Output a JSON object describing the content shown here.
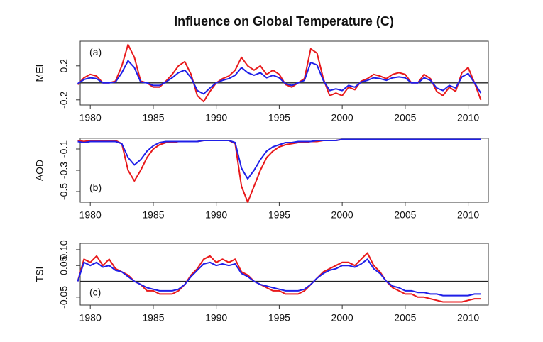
{
  "title": "Influence on Global Temperature (C)",
  "chart_data": [
    {
      "type": "line",
      "ylabel": "MEI",
      "annotation": "(a)",
      "x": [
        1979,
        1979.5,
        1980,
        1980.5,
        1981,
        1981.5,
        1982,
        1982.5,
        1983,
        1983.5,
        1984,
        1984.5,
        1985,
        1985.5,
        1986,
        1986.5,
        1987,
        1987.5,
        1988,
        1988.5,
        1989,
        1989.5,
        1990,
        1990.5,
        1991,
        1991.5,
        1992,
        1992.5,
        1993,
        1993.5,
        1994,
        1994.5,
        1995,
        1995.5,
        1996,
        1996.5,
        1997,
        1997.5,
        1998,
        1998.5,
        1999,
        1999.5,
        2000,
        2000.5,
        2001,
        2001.5,
        2002,
        2002.5,
        2003,
        2003.5,
        2004,
        2004.5,
        2005,
        2005.5,
        2006,
        2006.5,
        2007,
        2007.5,
        2008,
        2008.5,
        2009,
        2009.5,
        2010,
        2010.5,
        2011
      ],
      "series": [
        {
          "color": "#e8191b",
          "values": [
            -0.02,
            0.06,
            0.1,
            0.08,
            0,
            0,
            0.02,
            0.2,
            0.45,
            0.3,
            0.02,
            0,
            -0.05,
            -0.05,
            0.02,
            0.1,
            0.2,
            0.25,
            0.1,
            -0.15,
            -0.22,
            -0.1,
            0,
            0.05,
            0.08,
            0.15,
            0.3,
            0.2,
            0.15,
            0.2,
            0.1,
            0.15,
            0.1,
            -0.02,
            -0.05,
            0,
            0.05,
            0.4,
            0.35,
            0.05,
            -0.15,
            -0.12,
            -0.15,
            -0.05,
            -0.08,
            0.02,
            0.05,
            0.1,
            0.08,
            0.05,
            0.1,
            0.12,
            0.1,
            0,
            0,
            0.1,
            0.05,
            -0.1,
            -0.15,
            -0.05,
            -0.1,
            0.12,
            0.18,
            0,
            -0.2
          ]
        },
        {
          "color": "#1f1fe8",
          "values": [
            -0.01,
            0.04,
            0.06,
            0.05,
            0,
            0,
            0.01,
            0.12,
            0.26,
            0.18,
            0.01,
            0,
            -0.03,
            -0.03,
            0.01,
            0.06,
            0.12,
            0.15,
            0.06,
            -0.09,
            -0.13,
            -0.06,
            0,
            0.03,
            0.05,
            0.09,
            0.18,
            0.12,
            0.09,
            0.12,
            0.06,
            0.09,
            0.06,
            -0.01,
            -0.03,
            0,
            0.03,
            0.24,
            0.21,
            0.03,
            -0.09,
            -0.07,
            -0.09,
            -0.03,
            -0.05,
            0.01,
            0.03,
            0.06,
            0.05,
            0.03,
            0.06,
            0.07,
            0.06,
            0,
            0,
            0.06,
            0.03,
            -0.06,
            -0.09,
            -0.03,
            -0.06,
            0.07,
            0.11,
            0,
            -0.12
          ]
        }
      ],
      "xlim": [
        1979.2,
        2011.6
      ],
      "xticks": [
        1980,
        1985,
        1990,
        1995,
        2000,
        2005,
        2010
      ],
      "ylim": [
        -0.26,
        0.49
      ],
      "yticks": [
        -0.2,
        0.2
      ],
      "hline": 0,
      "hline_color": "#222"
    },
    {
      "type": "line",
      "ylabel": "AOD",
      "annotation": "(b)",
      "x": [
        1979,
        1979.5,
        1980,
        1980.5,
        1981,
        1981.5,
        1982,
        1982.5,
        1983,
        1983.5,
        1984,
        1984.5,
        1985,
        1985.5,
        1986,
        1986.5,
        1987,
        1987.5,
        1988,
        1988.5,
        1989,
        1989.5,
        1990,
        1990.5,
        1991,
        1991.5,
        1992,
        1992.5,
        1993,
        1993.5,
        1994,
        1994.5,
        1995,
        1995.5,
        1996,
        1996.5,
        1997,
        1997.5,
        1998,
        1998.5,
        1999,
        1999.5,
        2000,
        2000.5,
        2001,
        2001.5,
        2002,
        2002.5,
        2003,
        2003.5,
        2004,
        2004.5,
        2005,
        2005.5,
        2006,
        2006.5,
        2007,
        2007.5,
        2008,
        2008.5,
        2009,
        2009.5,
        2010,
        2010.5,
        2011
      ],
      "series": [
        {
          "color": "#e8191b",
          "values": [
            -0.02,
            -0.03,
            -0.02,
            -0.02,
            -0.02,
            -0.02,
            -0.02,
            -0.05,
            -0.3,
            -0.4,
            -0.3,
            -0.18,
            -0.1,
            -0.06,
            -0.04,
            -0.04,
            -0.03,
            -0.03,
            -0.03,
            -0.03,
            -0.02,
            -0.02,
            -0.02,
            -0.02,
            -0.02,
            -0.05,
            -0.45,
            -0.6,
            -0.45,
            -0.3,
            -0.18,
            -0.12,
            -0.08,
            -0.06,
            -0.05,
            -0.04,
            -0.04,
            -0.03,
            -0.03,
            -0.02,
            -0.02,
            -0.02,
            -0.01,
            -0.01,
            -0.01,
            -0.01,
            -0.01,
            -0.01,
            -0.01,
            -0.01,
            -0.01,
            -0.01,
            -0.01,
            -0.01,
            -0.01,
            -0.01,
            -0.01,
            -0.01,
            -0.01,
            -0.01,
            -0.01,
            -0.01,
            -0.01,
            -0.01,
            -0.01
          ]
        },
        {
          "color": "#1f1fe8",
          "values": [
            -0.03,
            -0.04,
            -0.03,
            -0.03,
            -0.03,
            -0.03,
            -0.03,
            -0.05,
            -0.18,
            -0.25,
            -0.2,
            -0.12,
            -0.07,
            -0.04,
            -0.03,
            -0.03,
            -0.03,
            -0.03,
            -0.03,
            -0.03,
            -0.02,
            -0.02,
            -0.02,
            -0.02,
            -0.02,
            -0.04,
            -0.28,
            -0.38,
            -0.3,
            -0.2,
            -0.12,
            -0.08,
            -0.06,
            -0.04,
            -0.04,
            -0.03,
            -0.03,
            -0.03,
            -0.02,
            -0.02,
            -0.02,
            -0.02,
            -0.01,
            -0.01,
            -0.01,
            -0.01,
            -0.01,
            -0.01,
            -0.01,
            -0.01,
            -0.01,
            -0.01,
            -0.01,
            -0.01,
            -0.01,
            -0.01,
            -0.01,
            -0.01,
            -0.01,
            -0.01,
            -0.01,
            -0.01,
            -0.01,
            -0.01,
            -0.01
          ]
        }
      ],
      "xlim": [
        1979.2,
        2011.6
      ],
      "xticks": [
        1980,
        1985,
        1990,
        1995,
        2000,
        2005,
        2010
      ],
      "ylim": [
        -0.6,
        0
      ],
      "yticks": [
        -0.1,
        -0.3,
        -0.5
      ],
      "hline": 0,
      "hline_color": "#888"
    },
    {
      "type": "line",
      "ylabel": "TSI",
      "annotation": "(c)",
      "x": [
        1979,
        1979.5,
        1980,
        1980.5,
        1981,
        1981.5,
        1982,
        1982.5,
        1983,
        1983.5,
        1984,
        1984.5,
        1985,
        1985.5,
        1986,
        1986.5,
        1987,
        1987.5,
        1988,
        1988.5,
        1989,
        1989.5,
        1990,
        1990.5,
        1991,
        1991.5,
        1992,
        1992.5,
        1993,
        1993.5,
        1994,
        1994.5,
        1995,
        1995.5,
        1996,
        1996.5,
        1997,
        1997.5,
        1998,
        1998.5,
        1999,
        1999.5,
        2000,
        2000.5,
        2001,
        2001.5,
        2002,
        2002.5,
        2003,
        2003.5,
        2004,
        2004.5,
        2005,
        2005.5,
        2006,
        2006.5,
        2007,
        2007.5,
        2008,
        2008.5,
        2009,
        2009.5,
        2010,
        2010.5,
        2011
      ],
      "series": [
        {
          "color": "#e8191b",
          "values": [
            0,
            0.07,
            0.06,
            0.08,
            0.05,
            0.07,
            0.04,
            0.03,
            0.02,
            0,
            -0.01,
            -0.03,
            -0.03,
            -0.04,
            -0.04,
            -0.04,
            -0.03,
            -0.01,
            0.02,
            0.04,
            0.07,
            0.08,
            0.06,
            0.07,
            0.06,
            0.07,
            0.03,
            0.02,
            0,
            -0.01,
            -0.02,
            -0.03,
            -0.03,
            -0.04,
            -0.04,
            -0.04,
            -0.03,
            -0.01,
            0.01,
            0.03,
            0.04,
            0.05,
            0.06,
            0.06,
            0.05,
            0.07,
            0.09,
            0.05,
            0.03,
            0,
            -0.02,
            -0.03,
            -0.04,
            -0.04,
            -0.05,
            -0.05,
            -0.055,
            -0.06,
            -0.065,
            -0.065,
            -0.065,
            -0.065,
            -0.06,
            -0.055,
            -0.055
          ]
        },
        {
          "color": "#1f1fe8",
          "values": [
            0,
            0.06,
            0.05,
            0.06,
            0.045,
            0.05,
            0.035,
            0.03,
            0.015,
            0,
            -0.01,
            -0.02,
            -0.025,
            -0.03,
            -0.03,
            -0.03,
            -0.025,
            -0.01,
            0.015,
            0.035,
            0.055,
            0.06,
            0.05,
            0.055,
            0.05,
            0.055,
            0.025,
            0.015,
            0,
            -0.01,
            -0.015,
            -0.02,
            -0.025,
            -0.03,
            -0.03,
            -0.03,
            -0.025,
            -0.01,
            0.01,
            0.025,
            0.035,
            0.04,
            0.05,
            0.05,
            0.045,
            0.055,
            0.07,
            0.04,
            0.025,
            0,
            -0.015,
            -0.02,
            -0.03,
            -0.03,
            -0.035,
            -0.035,
            -0.04,
            -0.04,
            -0.045,
            -0.045,
            -0.045,
            -0.045,
            -0.045,
            -0.04,
            -0.04
          ]
        }
      ],
      "xlim": [
        1979.2,
        2011.6
      ],
      "xticks": [
        1980,
        1985,
        1990,
        1995,
        2000,
        2005,
        2010
      ],
      "ylim": [
        -0.075,
        0.12
      ],
      "yticks": [
        -0.05,
        0.05,
        {
          "value": 0.1,
          "label": "0.10"
        }
      ],
      "hline": 0,
      "hline_color": "#222"
    }
  ]
}
